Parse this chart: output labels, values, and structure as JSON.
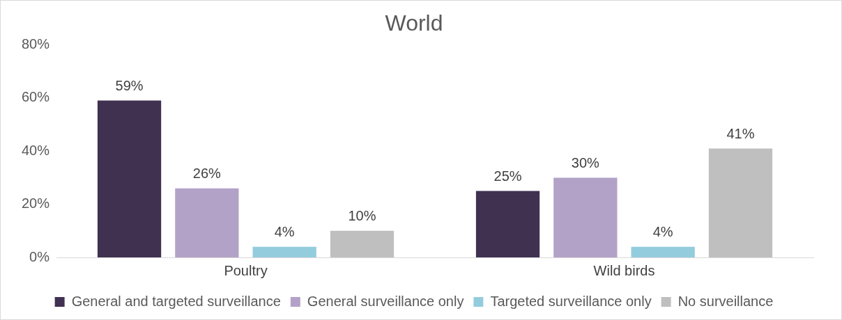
{
  "chart_data": {
    "type": "bar",
    "title": "World",
    "categories": [
      "Poultry",
      "Wild birds"
    ],
    "series": [
      {
        "name": "General and targeted surveillance",
        "color": "#403151",
        "values": [
          59,
          25
        ],
        "value_labels": [
          "59%",
          "25%"
        ]
      },
      {
        "name": "General surveillance only",
        "color": "#b3a2c7",
        "values": [
          26,
          30
        ],
        "value_labels": [
          "26%",
          "30%"
        ]
      },
      {
        "name": "Targeted surveillance only",
        "color": "#93cddd",
        "values": [
          4,
          4
        ],
        "value_labels": [
          "4%",
          "4%"
        ]
      },
      {
        "name": "No surveillance",
        "color": "#bfbfbf",
        "values": [
          10,
          41
        ],
        "value_labels": [
          "10%",
          "41%"
        ]
      }
    ],
    "ylim": [
      0,
      80
    ],
    "yticks": [
      {
        "value": 0,
        "label": "0%"
      },
      {
        "value": 20,
        "label": "20%"
      },
      {
        "value": 40,
        "label": "40%"
      },
      {
        "value": 60,
        "label": "60%"
      },
      {
        "value": 80,
        "label": "80%"
      }
    ],
    "grid": false,
    "legend": "bottom"
  }
}
